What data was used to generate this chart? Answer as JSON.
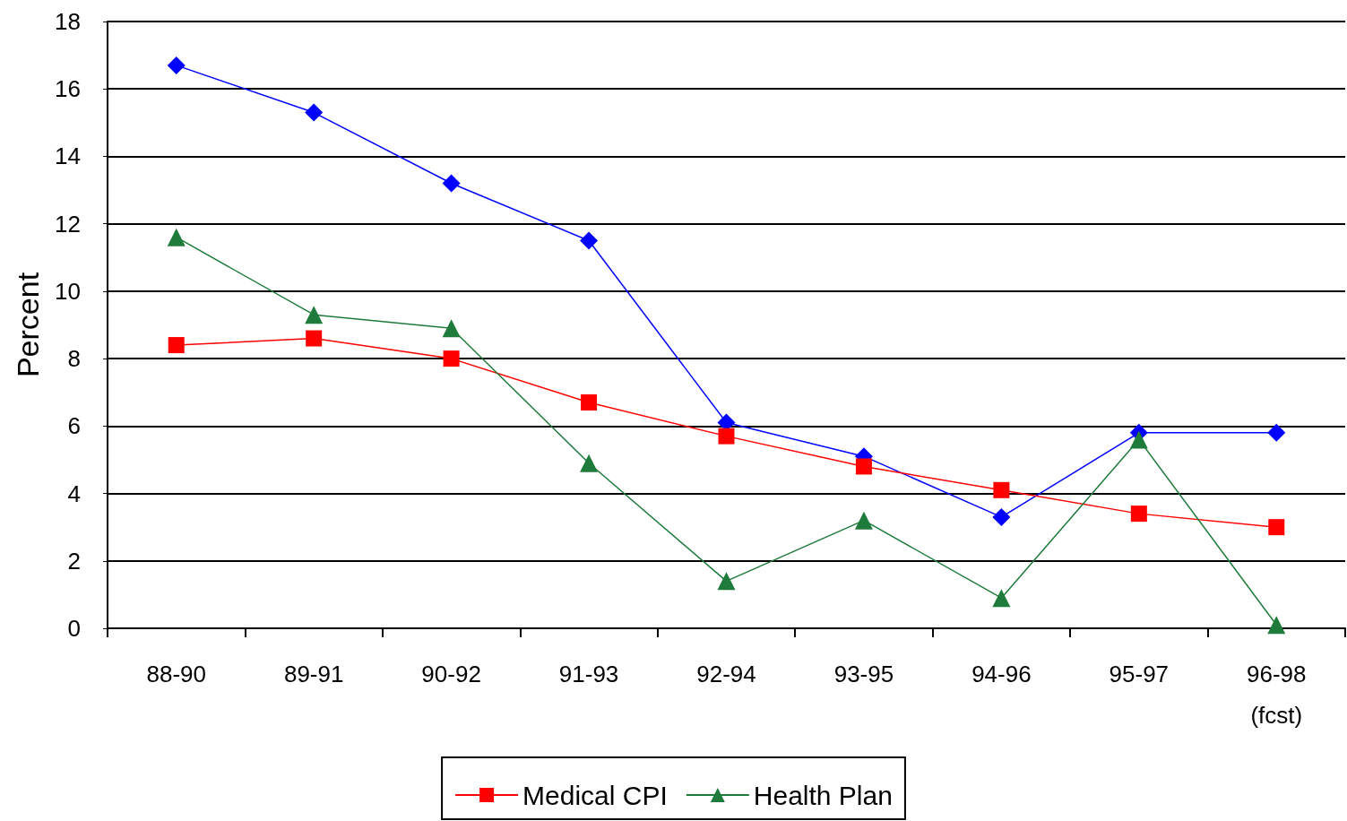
{
  "chart_data": {
    "type": "line",
    "ylabel": "Percent",
    "categories": [
      "88-90",
      "89-91",
      "90-92",
      "91-93",
      "92-94",
      "93-95",
      "94-96",
      "95-97",
      "96-98\n(fcst)"
    ],
    "series": [
      {
        "color": "#0000ff",
        "marker": "diamond",
        "values": [
          16.7,
          15.3,
          13.2,
          11.5,
          6.1,
          5.1,
          3.3,
          5.8,
          5.8
        ]
      },
      {
        "name": "Medical CPI",
        "color": "#ff0000",
        "marker": "square",
        "values": [
          8.4,
          8.6,
          8.0,
          6.7,
          5.7,
          4.8,
          4.1,
          3.4,
          3.0
        ]
      },
      {
        "name": "Health Plan",
        "color": "#1e7b3c",
        "marker": "triangle",
        "values": [
          11.6,
          9.3,
          8.9,
          4.9,
          1.4,
          3.2,
          0.9,
          5.6,
          0.1
        ]
      }
    ],
    "ylim": [
      0,
      18
    ],
    "yticks": [
      0,
      2,
      4,
      6,
      8,
      10,
      12,
      14,
      16,
      18
    ],
    "grid": "y",
    "legend": "bottom"
  }
}
